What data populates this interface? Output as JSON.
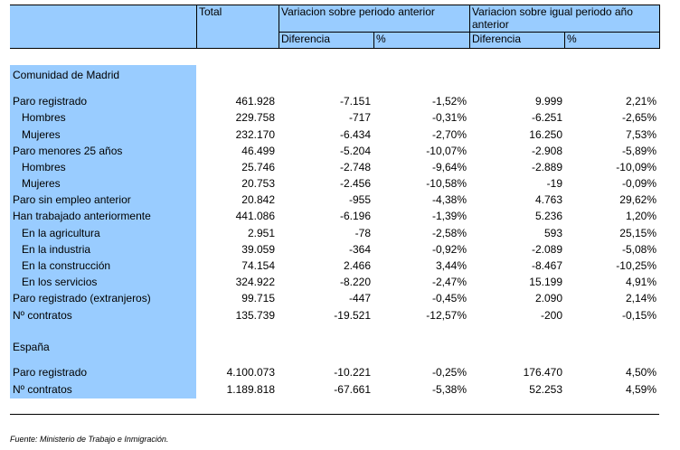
{
  "header": {
    "total": "Total",
    "var_anterior": "Variacion sobre periodo anterior",
    "var_igual_line1": "Variacion sobre igual periodo año",
    "var_igual_line2": "anterior",
    "diferencia_1": "Diferencia",
    "pct_1": "%",
    "diferencia_2": "Diferencia",
    "pct_2": "%"
  },
  "rows": [
    {
      "label": "Comunidad de Madrid",
      "indent": false,
      "values": [
        "",
        "",
        "",
        "",
        ""
      ]
    },
    {
      "label": "Paro registrado",
      "indent": false,
      "values": [
        "461.928",
        "-7.151",
        "-1,52%",
        "9.999",
        "2,21%"
      ]
    },
    {
      "label": "Hombres",
      "indent": true,
      "values": [
        "229.758",
        "-717",
        "-0,31%",
        "-6.251",
        "-2,65%"
      ]
    },
    {
      "label": "Mujeres",
      "indent": true,
      "values": [
        "232.170",
        "-6.434",
        "-2,70%",
        "16.250",
        "7,53%"
      ]
    },
    {
      "label": "Paro menores 25 años",
      "indent": false,
      "values": [
        "46.499",
        "-5.204",
        "-10,07%",
        "-2.908",
        "-5,89%"
      ]
    },
    {
      "label": "Hombres",
      "indent": true,
      "values": [
        "25.746",
        "-2.748",
        "-9,64%",
        "-2.889",
        "-10,09%"
      ]
    },
    {
      "label": "Mujeres",
      "indent": true,
      "values": [
        "20.753",
        "-2.456",
        "-10,58%",
        "-19",
        "-0,09%"
      ]
    },
    {
      "label": "Paro sin empleo anterior",
      "indent": false,
      "values": [
        "20.842",
        "-955",
        "-4,38%",
        "4.763",
        "29,62%"
      ]
    },
    {
      "label": "Han trabajado anteriormente",
      "indent": false,
      "values": [
        "441.086",
        "-6.196",
        "-1,39%",
        "5.236",
        "1,20%"
      ]
    },
    {
      "label": "En la agricultura",
      "indent": true,
      "values": [
        "2.951",
        "-78",
        "-2,58%",
        "593",
        "25,15%"
      ]
    },
    {
      "label": "En la industria",
      "indent": true,
      "values": [
        "39.059",
        "-364",
        "-0,92%",
        "-2.089",
        "-5,08%"
      ]
    },
    {
      "label": "En la construcción",
      "indent": true,
      "values": [
        "74.154",
        "2.466",
        "3,44%",
        "-8.467",
        "-10,25%"
      ]
    },
    {
      "label": "En los servicios",
      "indent": true,
      "values": [
        "324.922",
        "-8.220",
        "-2,47%",
        "15.199",
        "4,91%"
      ]
    },
    {
      "label": "Paro registrado (extranjeros)",
      "indent": false,
      "values": [
        "99.715",
        "-447",
        "-0,45%",
        "2.090",
        "2,14%"
      ]
    },
    {
      "label": "Nº contratos",
      "indent": false,
      "values": [
        "135.739",
        "-19.521",
        "-12,57%",
        "-200",
        "-0,15%"
      ]
    },
    {
      "label": "España",
      "indent": false,
      "values": [
        "",
        "",
        "",
        "",
        ""
      ]
    },
    {
      "label": "Paro registrado",
      "indent": false,
      "values": [
        "4.100.073",
        "-10.221",
        "-0,25%",
        "176.470",
        "4,50%"
      ]
    },
    {
      "label": "Nº contratos",
      "indent": false,
      "values": [
        "1.189.818",
        "-67.661",
        "-5,38%",
        "52.253",
        "4,59%"
      ]
    }
  ],
  "footer": "Fuente: Ministerio de Trabajo e Inmigración.",
  "colors": {
    "header_fill": "#99ccff"
  }
}
